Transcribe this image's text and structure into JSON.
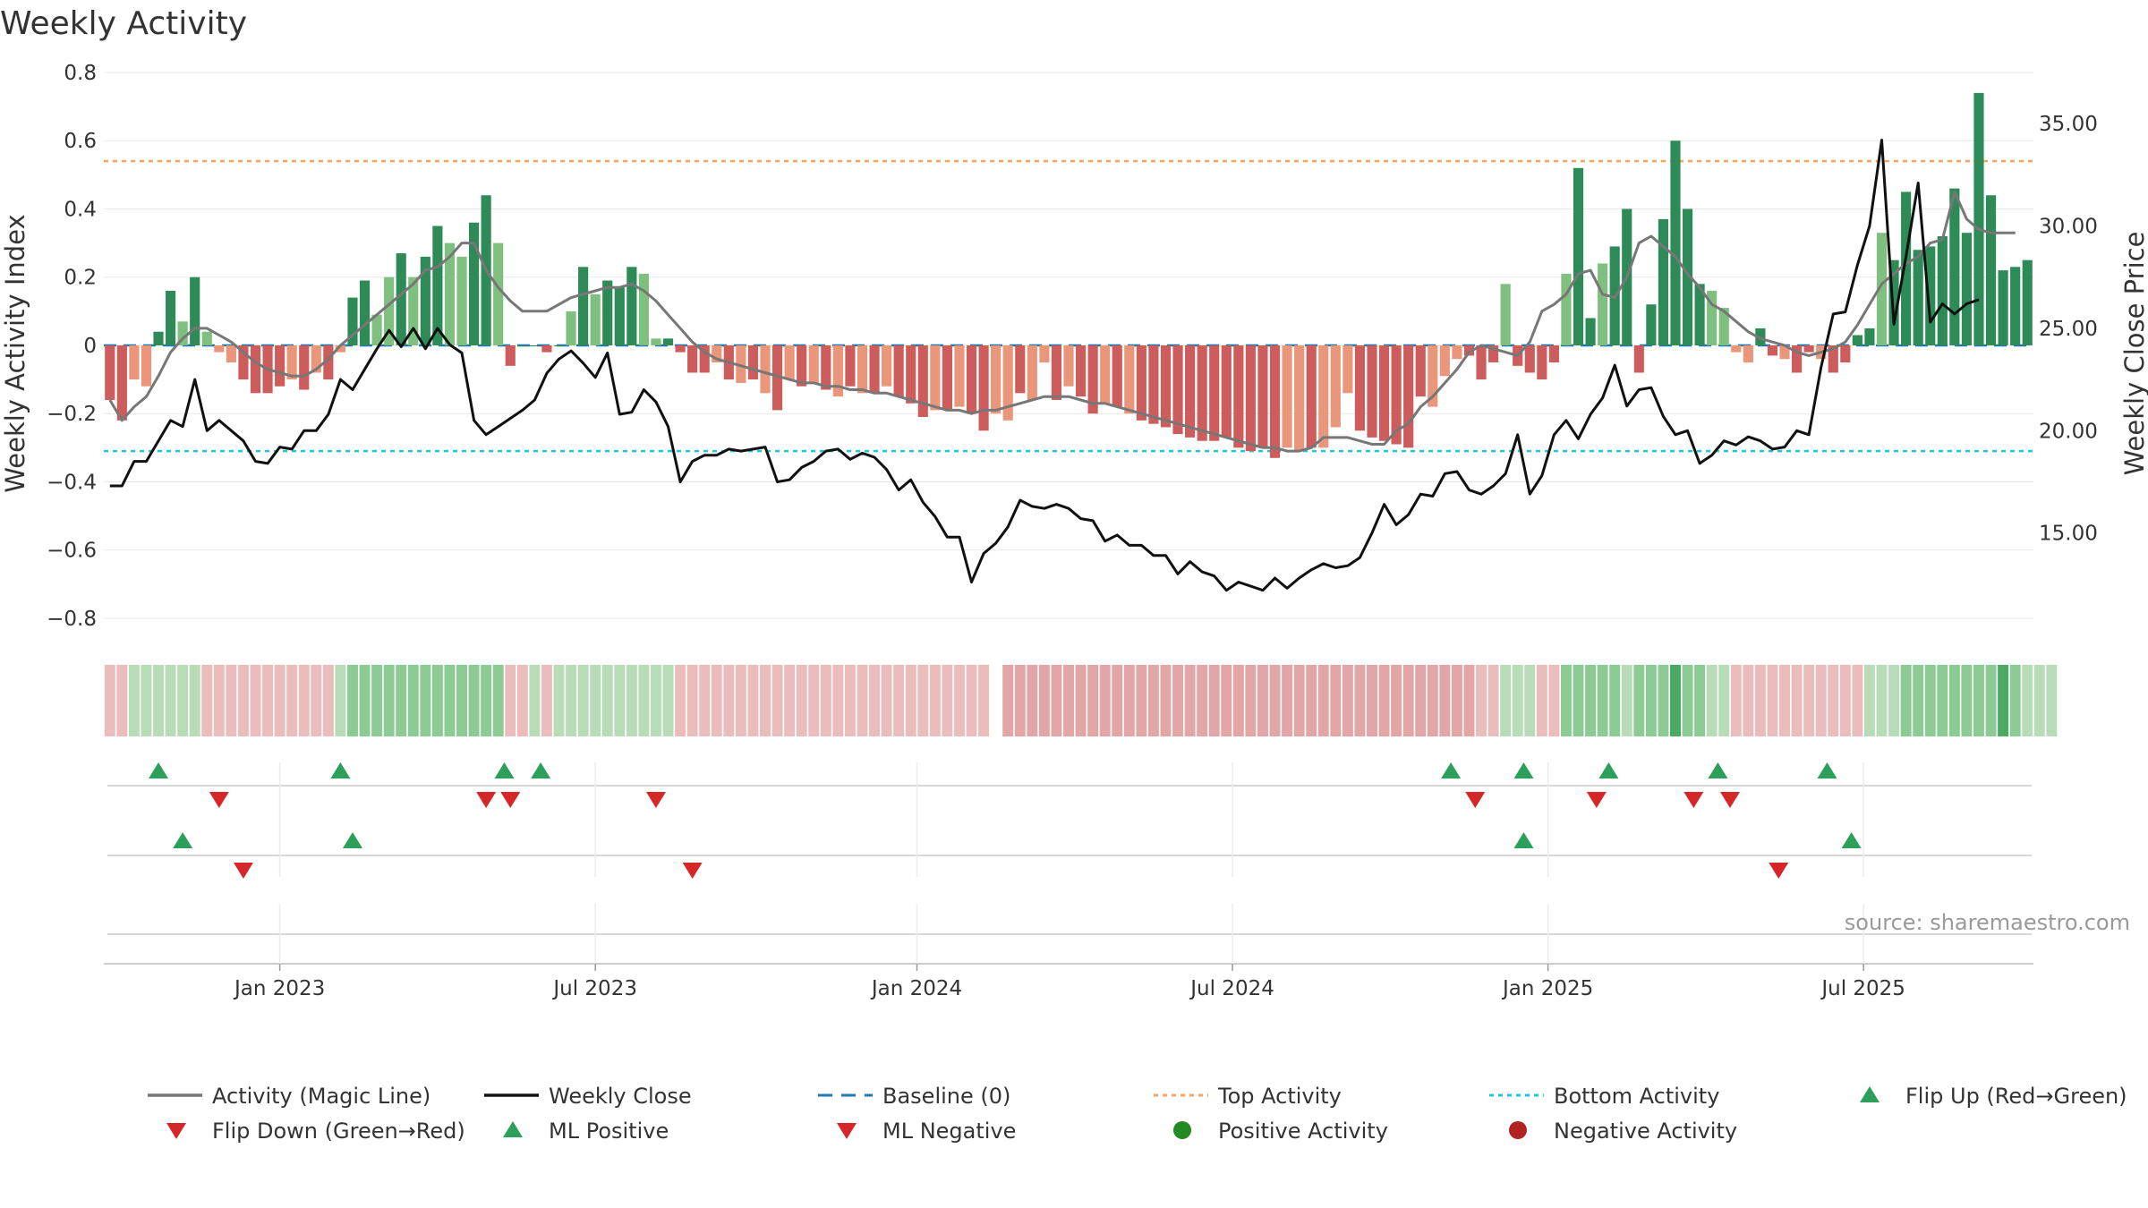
{
  "chart_data": {
    "type": "bar",
    "title": "Weekly Activity",
    "ylabel": "Weekly Activity Index",
    "y2label": "Weekly Close Price",
    "source": "source: sharemaestro.com",
    "ylim": [
      -0.85,
      0.8
    ],
    "y2lim": [
      10.0,
      37.5
    ],
    "y_ticks": [
      "0.8",
      "0.6",
      "0.4",
      "0.2",
      "0",
      "−0.2",
      "−0.4",
      "−0.6",
      "−0.8"
    ],
    "y_tick_values": [
      0.8,
      0.6,
      0.4,
      0.2,
      0,
      -0.2,
      -0.4,
      -0.6,
      -0.8
    ],
    "y2_ticks": [
      "35.00",
      "30.00",
      "25.00",
      "20.00",
      "15.00"
    ],
    "y2_tick_values": [
      35,
      30,
      25,
      20,
      15
    ],
    "x_ticks": [
      "Jan 2023",
      "Jul 2023",
      "Jan 2024",
      "Jul 2024",
      "Jan 2025",
      "Jul 2025"
    ],
    "x_tick_weeks": [
      14,
      40,
      66.5,
      92.5,
      118.5,
      144.5
    ],
    "top_activity": 0.54,
    "bottom_activity": -0.31,
    "baseline": 0,
    "colors": {
      "strong_green": "#2e8b57",
      "light_green": "#7fbf7f",
      "strong_red": "#cd5c5c",
      "light_red": "#e9967a",
      "magic_line": "#777777",
      "close_line": "#111111",
      "baseline": "#1f77b4",
      "top": "#f4a460",
      "bottom": "#1ec8d8",
      "flip_up": "#2ca05a",
      "flip_down": "#d62728",
      "positive_dot": "#228b22",
      "negative_dot": "#b22222"
    },
    "activity": [
      -0.16,
      -0.22,
      -0.1,
      -0.12,
      0.04,
      0.16,
      0.07,
      0.2,
      0.04,
      -0.02,
      -0.05,
      -0.1,
      -0.14,
      -0.14,
      -0.12,
      -0.1,
      -0.13,
      -0.08,
      -0.1,
      -0.02,
      0.14,
      0.19,
      0.09,
      0.2,
      0.27,
      0.2,
      0.26,
      0.35,
      0.3,
      0.26,
      0.36,
      0.44,
      0.3,
      -0.06,
      0,
      0,
      -0.02,
      0,
      0.1,
      0.23,
      0.15,
      0.19,
      0.17,
      0.23,
      0.21,
      0.02,
      0.02,
      -0.02,
      -0.08,
      -0.08,
      -0.05,
      -0.1,
      -0.11,
      -0.1,
      -0.14,
      -0.19,
      -0.1,
      -0.12,
      -0.11,
      -0.13,
      -0.15,
      -0.12,
      -0.14,
      -0.14,
      -0.12,
      -0.15,
      -0.17,
      -0.21,
      -0.19,
      -0.19,
      -0.18,
      -0.2,
      -0.25,
      -0.2,
      -0.22,
      -0.14,
      -0.16,
      -0.05,
      -0.16,
      -0.12,
      -0.15,
      -0.2,
      -0.17,
      -0.18,
      -0.2,
      -0.22,
      -0.23,
      -0.24,
      -0.26,
      -0.27,
      -0.28,
      -0.28,
      -0.27,
      -0.3,
      -0.31,
      -0.3,
      -0.33,
      -0.3,
      -0.31,
      -0.3,
      -0.3,
      -0.24,
      -0.14,
      -0.25,
      -0.27,
      -0.28,
      -0.29,
      -0.3,
      -0.15,
      -0.18,
      -0.09,
      -0.04,
      -0.03,
      -0.1,
      -0.05,
      0.18,
      -0.06,
      -0.08,
      -0.1,
      -0.05,
      0.21,
      0.52,
      0.08,
      0.24,
      0.29,
      0.4,
      -0.08,
      0.12,
      0.37,
      0.6,
      0.4,
      0.18,
      0.16,
      0.11,
      -0.02,
      -0.05,
      0.05,
      -0.03,
      -0.04,
      -0.08,
      -0.02,
      -0.04,
      -0.08,
      -0.05,
      0.03,
      0.05,
      0.33,
      0.25,
      0.45,
      0.28,
      0.29,
      0.32,
      0.46,
      0.33,
      0.74,
      0.44,
      0.22,
      0.23,
      0.25
    ],
    "shade": [
      1,
      1,
      0,
      0,
      1,
      1,
      0,
      1,
      0,
      0,
      0,
      1,
      1,
      1,
      1,
      0,
      1,
      0,
      1,
      0,
      1,
      1,
      0,
      0,
      1,
      0,
      1,
      1,
      0,
      0,
      1,
      1,
      0,
      1,
      1,
      1,
      1,
      1,
      0,
      1,
      0,
      1,
      1,
      1,
      0,
      0,
      1,
      1,
      1,
      1,
      0,
      1,
      0,
      1,
      0,
      1,
      0,
      1,
      0,
      1,
      0,
      1,
      0,
      1,
      0,
      1,
      1,
      1,
      0,
      1,
      0,
      1,
      1,
      0,
      0,
      1,
      0,
      0,
      1,
      0,
      1,
      1,
      0,
      1,
      0,
      1,
      1,
      1,
      1,
      1,
      1,
      1,
      1,
      1,
      1,
      1,
      1,
      0,
      0,
      1,
      0,
      0,
      0,
      1,
      1,
      1,
      1,
      1,
      1,
      0,
      0,
      0,
      1,
      1,
      1,
      0,
      1,
      1,
      1,
      1,
      0,
      1,
      1,
      0,
      1,
      1,
      1,
      1,
      1,
      1,
      1,
      1,
      0,
      0,
      0,
      0,
      1,
      1,
      0,
      1,
      1,
      0,
      1,
      1,
      1,
      1,
      0,
      1,
      1,
      1,
      1,
      1,
      1,
      1,
      1,
      1,
      1,
      1,
      1,
      0,
      0,
      1,
      1
    ],
    "magic_line": [
      -0.16,
      -0.22,
      -0.18,
      -0.15,
      -0.09,
      -0.02,
      0.02,
      0.05,
      0.05,
      0.03,
      0.01,
      -0.02,
      -0.05,
      -0.07,
      -0.08,
      -0.09,
      -0.09,
      -0.07,
      -0.04,
      0,
      0.03,
      0.06,
      0.09,
      0.12,
      0.15,
      0.18,
      0.22,
      0.23,
      0.26,
      0.3,
      0.3,
      0.22,
      0.17,
      0.13,
      0.1,
      0.1,
      0.1,
      0.12,
      0.14,
      0.15,
      0.16,
      0.17,
      0.17,
      0.18,
      0.16,
      0.13,
      0.09,
      0.05,
      0.01,
      -0.02,
      -0.04,
      -0.05,
      -0.06,
      -0.07,
      -0.08,
      -0.09,
      -0.1,
      -0.11,
      -0.11,
      -0.12,
      -0.12,
      -0.13,
      -0.13,
      -0.14,
      -0.14,
      -0.15,
      -0.16,
      -0.17,
      -0.18,
      -0.19,
      -0.19,
      -0.2,
      -0.19,
      -0.19,
      -0.18,
      -0.17,
      -0.16,
      -0.15,
      -0.15,
      -0.15,
      -0.16,
      -0.17,
      -0.17,
      -0.18,
      -0.19,
      -0.2,
      -0.21,
      -0.22,
      -0.23,
      -0.24,
      -0.25,
      -0.26,
      -0.27,
      -0.28,
      -0.29,
      -0.3,
      -0.3,
      -0.31,
      -0.31,
      -0.3,
      -0.27,
      -0.27,
      -0.27,
      -0.28,
      -0.29,
      -0.29,
      -0.25,
      -0.23,
      -0.18,
      -0.15,
      -0.11,
      -0.07,
      -0.02,
      0,
      -0.01,
      -0.02,
      -0.03,
      0.01,
      0.1,
      0.12,
      0.15,
      0.21,
      0.22,
      0.15,
      0.14,
      0.2,
      0.3,
      0.32,
      0.29,
      0.26,
      0.21,
      0.17,
      0.12,
      0.1,
      0.07,
      0.04,
      0.02,
      0.01,
      0,
      -0.02,
      -0.03,
      -0.02,
      -0.01,
      0.01,
      0.06,
      0.12,
      0.18,
      0.21,
      0.24,
      0.26,
      0.3,
      0.31,
      0.45,
      0.37,
      0.34,
      0.33,
      0.33,
      0.33
    ],
    "weekly_close": [
      17.3,
      17.3,
      18.5,
      18.5,
      19.5,
      20.5,
      20.2,
      22.5,
      20,
      20.5,
      20,
      19.5,
      18.5,
      18.4,
      19.2,
      19.1,
      20,
      20,
      20.8,
      22.5,
      22,
      23,
      24,
      24.9,
      24.1,
      25,
      24,
      25,
      24.2,
      23.8,
      20.5,
      19.8,
      20.2,
      20.6,
      21,
      21.5,
      22.8,
      23.5,
      23.9,
      23.3,
      22.6,
      23.8,
      20.8,
      20.9,
      22,
      21.4,
      20.2,
      17.5,
      18.5,
      18.8,
      18.8,
      19.1,
      19,
      19.1,
      19.2,
      17.5,
      17.6,
      18.2,
      18.5,
      19,
      19.1,
      18.6,
      18.9,
      18.7,
      18.1,
      17.1,
      17.6,
      16.5,
      15.8,
      14.8,
      14.8,
      12.6,
      14,
      14.5,
      15.3,
      16.6,
      16.3,
      16.2,
      16.4,
      16.2,
      15.7,
      15.6,
      14.6,
      14.9,
      14.4,
      14.4,
      13.9,
      13.9,
      13,
      13.6,
      13.1,
      12.9,
      12.2,
      12.6,
      12.4,
      12.2,
      12.8,
      12.3,
      12.8,
      13.2,
      13.5,
      13.3,
      13.4,
      13.8,
      15,
      16.4,
      15.4,
      15.9,
      16.9,
      16.8,
      17.9,
      18,
      17.1,
      16.9,
      17.3,
      17.9,
      19.8,
      16.9,
      17.8,
      19.8,
      20.5,
      19.6,
      20.8,
      21.6,
      23.2,
      21.2,
      22,
      22.1,
      20.7,
      19.8,
      20,
      18.4,
      18.8,
      19.5,
      19.3,
      19.7,
      19.5,
      19.1,
      19.2,
      20,
      19.8,
      23.1,
      25.7,
      25.8,
      28.1,
      30,
      34.2,
      25.2,
      28.5,
      32.1,
      25.3,
      26.2,
      25.7,
      26.2,
      26.4
    ],
    "strip_shades": [
      "lr",
      "lr",
      "lg",
      "lg",
      "lg",
      "lg",
      "lg",
      "lg",
      "lr",
      "lr",
      "lr",
      "lr",
      "lr",
      "lr",
      "lr",
      "lr",
      "lr",
      "lr",
      "lr",
      "lg",
      "mg",
      "mg",
      "mg",
      "mg",
      "mg",
      "mg",
      "mg",
      "mg",
      "mg",
      "mg",
      "mg",
      "mg",
      "mg",
      "lr",
      "lr",
      "lg",
      "lr",
      "lg",
      "lg",
      "lg",
      "lg",
      "lg",
      "lg",
      "lg",
      "lg",
      "lg",
      "lg",
      "lr",
      "lr",
      "lr",
      "lr",
      "lr",
      "lr",
      "lr",
      "lr",
      "lr",
      "lr",
      "lr",
      "lr",
      "lr",
      "lr",
      "lr",
      "lr",
      "lr",
      "lr",
      "lr",
      "lr",
      "lr",
      "lr",
      "lr",
      "lr",
      "lr",
      "lr",
      "gap",
      "mr",
      "mr",
      "mr",
      "mr",
      "mr",
      "mr",
      "mr",
      "mr",
      "mr",
      "mr",
      "mr",
      "mr",
      "mr",
      "mr",
      "mr",
      "mr",
      "mr",
      "mr",
      "mr",
      "mr",
      "mr",
      "mr",
      "mr",
      "mr",
      "mr",
      "mr",
      "mr",
      "mr",
      "mr",
      "mr",
      "mr",
      "mr",
      "mr",
      "mr",
      "mr",
      "mr",
      "mr",
      "mr",
      "mr",
      "lr",
      "lr",
      "lg",
      "lg",
      "lg",
      "lr",
      "lr",
      "mg",
      "mg",
      "mg",
      "mg",
      "mg",
      "lg",
      "mg",
      "mg",
      "mg",
      "sg",
      "mg",
      "mg",
      "lg",
      "lg",
      "lr",
      "lr",
      "lr",
      "lr",
      "lr",
      "lr",
      "lr",
      "lr",
      "lr",
      "lr",
      "lr",
      "lg",
      "lg",
      "lg",
      "mg",
      "mg",
      "mg",
      "mg",
      "mg",
      "mg",
      "mg",
      "mg",
      "sg",
      "mg",
      "lg",
      "lg",
      "lg"
    ],
    "flip_up_weeks": [
      4,
      19,
      32.5,
      35.5,
      110.5,
      116.5,
      123.5,
      132.5,
      141.5
    ],
    "flip_down_weeks": [
      9,
      31,
      33,
      45,
      112.5,
      122.5,
      130.5,
      133.5
    ],
    "ml_positive_weeks": [
      6,
      20,
      116.5,
      143.5
    ],
    "ml_negative_weeks": [
      11,
      48,
      137.5
    ],
    "legend": [
      {
        "label": "Activity (Magic Line)",
        "type": "line-gray"
      },
      {
        "label": "Weekly Close",
        "type": "line-black"
      },
      {
        "label": "Baseline (0)",
        "type": "dash-blue"
      },
      {
        "label": "Top Activity",
        "type": "dot-orange"
      },
      {
        "label": "Bottom Activity",
        "type": "dot-cyan"
      },
      {
        "label": "Flip Up (Red→Green)",
        "type": "tri-up"
      },
      {
        "label": "Flip Down (Green→Red)",
        "type": "tri-down"
      },
      {
        "label": "ML Positive",
        "type": "tri-up"
      },
      {
        "label": "ML Negative",
        "type": "tri-down"
      },
      {
        "label": "Positive Activity",
        "type": "dot-green"
      },
      {
        "label": "Negative Activity",
        "type": "dot-red"
      }
    ]
  }
}
